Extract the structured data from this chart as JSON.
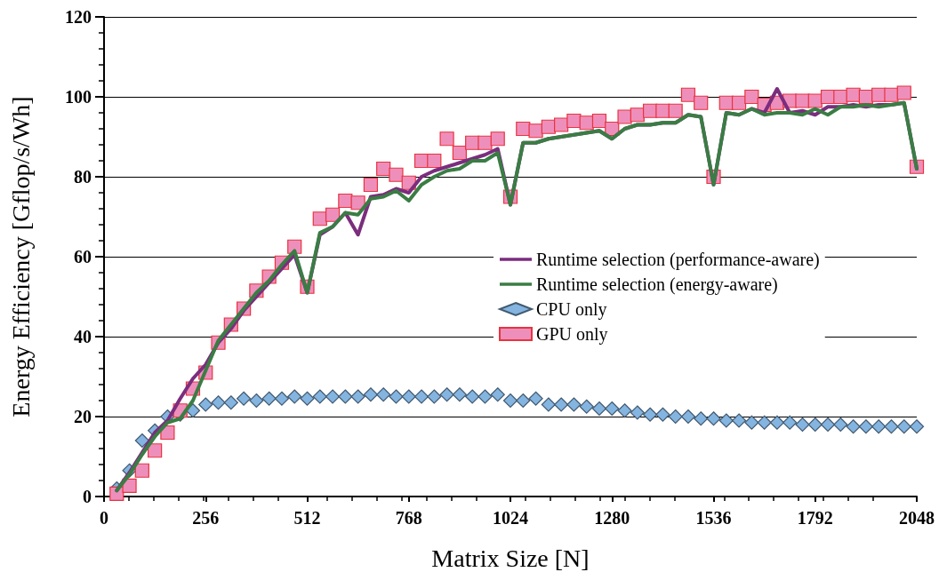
{
  "chart_data": {
    "type": "line",
    "xlabel": "Matrix Size [N]",
    "ylabel": "Energy Efficiency [Gflop/s/Wh]",
    "x": [
      32,
      64,
      96,
      128,
      160,
      192,
      224,
      256,
      288,
      320,
      352,
      384,
      416,
      448,
      480,
      512,
      544,
      576,
      608,
      640,
      672,
      704,
      736,
      768,
      800,
      832,
      864,
      896,
      928,
      960,
      992,
      1024,
      1056,
      1088,
      1120,
      1152,
      1184,
      1216,
      1248,
      1280,
      1312,
      1344,
      1376,
      1408,
      1440,
      1472,
      1504,
      1536,
      1568,
      1600,
      1632,
      1664,
      1696,
      1728,
      1760,
      1792,
      1824,
      1856,
      1888,
      1920,
      1952,
      1984,
      2016,
      2048
    ],
    "series": [
      {
        "name": "Runtime selection (performance-aware)",
        "marker": "none",
        "color": "#7b2d7e",
        "values": [
          1.5,
          6,
          11,
          16,
          19,
          24.5,
          29.5,
          33,
          38.5,
          42,
          46.5,
          50,
          53.5,
          57,
          60.5,
          51,
          65.5,
          67.5,
          71,
          65.5,
          75,
          75.5,
          77,
          76,
          80,
          81.5,
          82.5,
          83.5,
          84.5,
          85.5,
          87,
          73,
          88.5,
          88.5,
          89.5,
          90,
          90.5,
          91,
          91.5,
          89.5,
          92,
          93,
          93,
          93.5,
          93.5,
          95.5,
          95,
          78,
          96,
          95.5,
          97,
          96,
          102,
          96,
          96.5,
          95.5,
          97.5,
          97.5,
          98,
          97.5,
          98,
          98,
          98.5,
          82
        ]
      },
      {
        "name": "Runtime selection (energy-aware)",
        "marker": "none",
        "color": "#3a7d44",
        "values": [
          1.5,
          5.5,
          10.5,
          15,
          18.5,
          19.5,
          24,
          31.5,
          39,
          43,
          47,
          51,
          54,
          58,
          61.5,
          51,
          66,
          67.5,
          71,
          70.5,
          74.5,
          75,
          76.5,
          74,
          78,
          80,
          81.5,
          82,
          84,
          84,
          86,
          73,
          88.5,
          88.5,
          89.5,
          90,
          90.5,
          91,
          91.5,
          89.5,
          92,
          93,
          93,
          93.5,
          93.5,
          95.5,
          95,
          78,
          96,
          95.5,
          97,
          95.5,
          96,
          96,
          95.5,
          97,
          95.5,
          97.5,
          97.5,
          98,
          97.5,
          98,
          98.5,
          82
        ]
      },
      {
        "name": "CPU only",
        "type": "scatter",
        "marker": "diamond",
        "color": "#84b4e0",
        "values": [
          2,
          6.5,
          14,
          16.5,
          20,
          20.5,
          21.5,
          23,
          23.5,
          23.5,
          24.5,
          24,
          24.5,
          24.5,
          25,
          24.5,
          25,
          25,
          25,
          25,
          25.5,
          25.5,
          25,
          25,
          25,
          25,
          25.5,
          25.5,
          25,
          25,
          25.5,
          24,
          24,
          24.5,
          23,
          23,
          23,
          22.5,
          22,
          22,
          21.5,
          21,
          20.5,
          20.5,
          20,
          20,
          19.5,
          19.5,
          19,
          19,
          18.5,
          18.5,
          18.5,
          18.5,
          18,
          18,
          18,
          18,
          17.5,
          17.5,
          17.5,
          17.5,
          17.5,
          17.5
        ]
      },
      {
        "name": "GPU only",
        "type": "scatter",
        "marker": "square",
        "color": "#ee8fbb",
        "values": [
          0.7,
          2.7,
          6.5,
          11.5,
          16,
          21.5,
          27,
          31,
          38.5,
          43,
          47,
          51.5,
          55,
          58.5,
          62.5,
          52.5,
          69.5,
          70.5,
          74,
          73.5,
          78,
          82,
          80.5,
          78.5,
          84,
          84,
          89.5,
          86,
          88.5,
          88.5,
          89.5,
          75,
          92,
          91.5,
          92.5,
          93,
          94,
          93.5,
          94,
          92,
          95,
          95.5,
          96.5,
          96.5,
          96.5,
          100.5,
          98.5,
          80,
          98.5,
          98.5,
          100,
          98,
          98.5,
          99,
          99,
          99,
          100,
          100,
          100.5,
          100,
          100.5,
          100.5,
          101,
          82.5
        ]
      }
    ],
    "xlim": [
      0,
      2048
    ],
    "xticks": [
      0,
      256,
      512,
      768,
      1024,
      1280,
      1536,
      1792,
      2048
    ],
    "ylim": [
      0,
      120
    ],
    "yticks": [
      0,
      20,
      40,
      60,
      80,
      100,
      120
    ],
    "grid": "y",
    "legend": "right"
  }
}
